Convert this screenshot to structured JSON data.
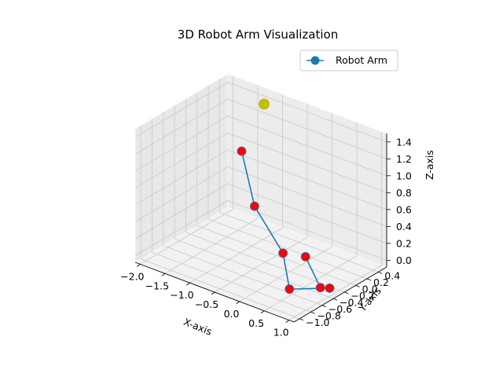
{
  "chart_data": {
    "type": "line3d",
    "title": "3D Robot Arm Visualization",
    "xlabel": "X-axis",
    "ylabel": "Y-axis",
    "zlabel": "Z-axis",
    "xticks": [
      "−2.0",
      "−1.5",
      "−1.0",
      "−0.5",
      "0.0",
      "0.5",
      "1.0"
    ],
    "yticks": [
      "−1.0",
      "−0.8",
      "−0.6",
      "−0.4",
      "−0.2",
      "0.0",
      "0.2",
      "0.4"
    ],
    "zticks": [
      "0.0",
      "0.2",
      "0.4",
      "0.6",
      "0.8",
      "1.0",
      "1.2",
      "1.4"
    ],
    "series": [
      {
        "name": "Robot Arm",
        "color": "#1f77b4",
        "points": [
          [
            -1.2,
            0.0,
            1.0
          ],
          [
            -0.6,
            -0.3,
            0.6
          ],
          [
            0.2,
            -0.5,
            0.3
          ],
          [
            0.5,
            -0.65,
            0.0
          ],
          [
            0.8,
            -0.2,
            -0.1
          ],
          [
            0.5,
            -0.1,
            -0.2
          ],
          [
            0.2,
            -0.1,
            0.1
          ]
        ]
      }
    ],
    "joint_color": "#ff0000",
    "target": {
      "point": [
        -1.2,
        0.4,
        1.4
      ],
      "color": "#bfbf00"
    },
    "legend": {
      "position": "top-right",
      "label": "Robot Arm"
    },
    "grid": true
  }
}
